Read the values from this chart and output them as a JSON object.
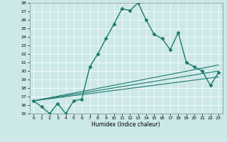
{
  "title": "",
  "xlabel": "Humidex (Indice chaleur)",
  "xlim": [
    -0.5,
    23.5
  ],
  "ylim": [
    15,
    28
  ],
  "yticks": [
    15,
    16,
    17,
    18,
    19,
    20,
    21,
    22,
    23,
    24,
    25,
    26,
    27,
    28
  ],
  "xticks": [
    0,
    1,
    2,
    3,
    4,
    5,
    6,
    7,
    8,
    9,
    10,
    11,
    12,
    13,
    14,
    15,
    16,
    17,
    18,
    19,
    20,
    21,
    22,
    23
  ],
  "background_color": "#cce8e8",
  "line_color": "#1a7a6e",
  "series": [
    {
      "x": [
        0,
        1,
        2,
        3,
        4,
        5,
        6,
        7,
        8,
        9,
        10,
        11,
        12,
        13,
        14,
        15,
        16,
        17,
        18,
        19,
        20,
        21,
        22,
        23
      ],
      "y": [
        16.5,
        15.8,
        15.0,
        16.2,
        15.0,
        16.5,
        16.7,
        20.5,
        22.0,
        23.8,
        25.5,
        27.3,
        27.1,
        28.0,
        26.0,
        24.3,
        23.8,
        22.5,
        24.5,
        21.0,
        20.5,
        20.0,
        18.3,
        19.8
      ],
      "marker": "D",
      "markersize": 2.5,
      "linewidth": 1.0
    },
    {
      "x": [
        0,
        23
      ],
      "y": [
        16.5,
        19.3
      ],
      "marker": null,
      "markersize": 0,
      "linewidth": 0.8
    },
    {
      "x": [
        0,
        23
      ],
      "y": [
        16.5,
        20.0
      ],
      "marker": null,
      "markersize": 0,
      "linewidth": 0.8
    },
    {
      "x": [
        0,
        23
      ],
      "y": [
        16.5,
        20.7
      ],
      "marker": null,
      "markersize": 0,
      "linewidth": 0.8
    }
  ]
}
